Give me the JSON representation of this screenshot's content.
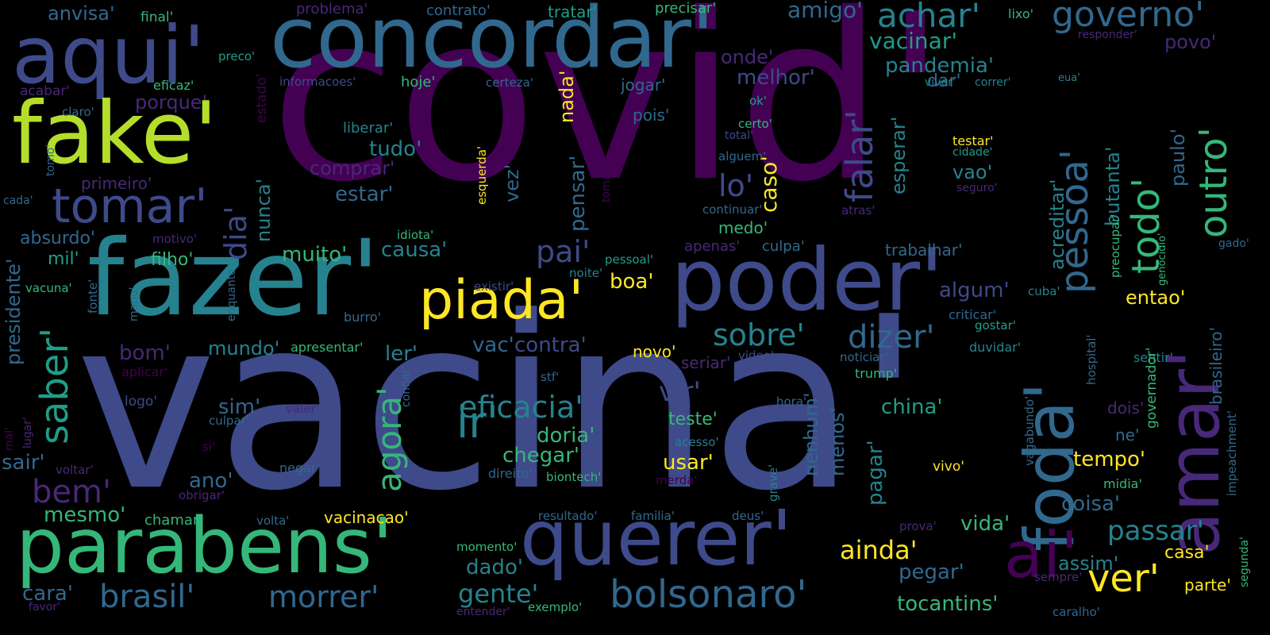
{
  "title": "",
  "palette": {
    "background": "#000000",
    "darkest_purple": "#440154",
    "purple": "#482878",
    "indigo": "#3e4a89",
    "blue": "#31688e",
    "teal_blue": "#26828e",
    "teal": "#1f9e89",
    "green": "#35b779",
    "lime": "#6ece58",
    "yellow_green": "#b5de2b",
    "yellow": "#fde725"
  },
  "words": [
    {
      "text": "covid'",
      "color": "#440154"
    },
    {
      "text": "vacina'",
      "color": "#3e4a89"
    },
    {
      "text": "fazer'",
      "color": "#26828e"
    },
    {
      "text": "concordar'",
      "color": "#31688e"
    },
    {
      "text": "aqui'",
      "color": "#3e4a89"
    },
    {
      "text": "fake'",
      "color": "#b5de2b"
    },
    {
      "text": "poder'",
      "color": "#3e4a89"
    },
    {
      "text": "querer'",
      "color": "#3e4a89"
    },
    {
      "text": "parabens'",
      "color": "#35b779"
    },
    {
      "text": "piada'",
      "color": "#fde725"
    },
    {
      "text": "tomar'",
      "color": "#3e4a89"
    },
    {
      "text": "foda'",
      "color": "#31688e"
    },
    {
      "text": "amar'",
      "color": "#482878"
    },
    {
      "text": "ai'",
      "color": "#440154"
    },
    {
      "text": "ver'",
      "color": "#fde725"
    },
    {
      "text": "bolsonaro'",
      "color": "#31688e"
    },
    {
      "text": "pessoa'",
      "color": "#31688e"
    },
    {
      "text": "todo'",
      "color": "#35b779"
    },
    {
      "text": "outro'",
      "color": "#35b779"
    },
    {
      "text": "governo'",
      "color": "#31688e"
    },
    {
      "text": "achar'",
      "color": "#26828e"
    },
    {
      "text": "falar'",
      "color": "#3e4a89"
    },
    {
      "text": "saber'",
      "color": "#1f9e89"
    },
    {
      "text": "ir'",
      "color": "#26828e"
    },
    {
      "text": "agora'",
      "color": "#35b779"
    },
    {
      "text": "brasil'",
      "color": "#31688e"
    },
    {
      "text": "morrer'",
      "color": "#31688e"
    },
    {
      "text": "dizer'",
      "color": "#31688e"
    },
    {
      "text": "sobre'",
      "color": "#26828e"
    },
    {
      "text": "bem'",
      "color": "#482878"
    },
    {
      "text": "eficacia'",
      "color": "#26828e"
    },
    {
      "text": "vir'",
      "color": "#3e4a89"
    },
    {
      "text": "pai'",
      "color": "#3e4a89"
    },
    {
      "text": "dia'",
      "color": "#3e4a89"
    },
    {
      "text": "gente'",
      "color": "#26828e"
    },
    {
      "text": "passar'",
      "color": "#26828e"
    },
    {
      "text": "ainda'",
      "color": "#fde725"
    },
    {
      "text": "amigo'",
      "color": "#31688e"
    },
    {
      "text": "vacinar'",
      "color": "#1f9e89"
    },
    {
      "text": "pandemia'",
      "color": "#26828e"
    },
    {
      "text": "melhor'",
      "color": "#3e4a89"
    },
    {
      "text": "onde'",
      "color": "#482878"
    },
    {
      "text": "lo'",
      "color": "#3e4a89"
    },
    {
      "text": "caso'",
      "color": "#fde725"
    },
    {
      "text": "tudo'",
      "color": "#26828e"
    },
    {
      "text": "comprar'",
      "color": "#482878"
    },
    {
      "text": "estar'",
      "color": "#31688e"
    },
    {
      "text": "vez'",
      "color": "#31688e"
    },
    {
      "text": "nada'",
      "color": "#fde725"
    },
    {
      "text": "pensar'",
      "color": "#31688e"
    },
    {
      "text": "muito'",
      "color": "#35b779"
    },
    {
      "text": "causa'",
      "color": "#26828e"
    },
    {
      "text": "nunca'",
      "color": "#26828e"
    },
    {
      "text": "esperar'",
      "color": "#26828e"
    },
    {
      "text": "acreditar'",
      "color": "#26828e"
    },
    {
      "text": "butanta'",
      "color": "#26828e"
    },
    {
      "text": "paulo'",
      "color": "#31688e"
    },
    {
      "text": "vao'",
      "color": "#26828e"
    },
    {
      "text": "testar'",
      "color": "#fde725"
    },
    {
      "text": "algum'",
      "color": "#3e4a89"
    },
    {
      "text": "entao'",
      "color": "#fde725"
    },
    {
      "text": "boa'",
      "color": "#fde725"
    },
    {
      "text": "mundo'",
      "color": "#26828e"
    },
    {
      "text": "ler'",
      "color": "#26828e"
    },
    {
      "text": "vac'",
      "color": "#31688e"
    },
    {
      "text": "contra'",
      "color": "#3e4a89"
    },
    {
      "text": "bom'",
      "color": "#482878"
    },
    {
      "text": "china'",
      "color": "#1f9e89"
    },
    {
      "text": "doria'",
      "color": "#35b779"
    },
    {
      "text": "chegar'",
      "color": "#35b779"
    },
    {
      "text": "usar'",
      "color": "#fde725"
    },
    {
      "text": "nenhum'",
      "color": "#31688e"
    },
    {
      "text": "menos'",
      "color": "#31688e"
    },
    {
      "text": "pagar'",
      "color": "#26828e"
    },
    {
      "text": "tempo'",
      "color": "#fde725"
    },
    {
      "text": "coisa'",
      "color": "#31688e"
    },
    {
      "text": "vida'",
      "color": "#35b779"
    },
    {
      "text": "casa'",
      "color": "#fde725"
    },
    {
      "text": "assim'",
      "color": "#26828e"
    },
    {
      "text": "parte'",
      "color": "#fde725"
    },
    {
      "text": "dado'",
      "color": "#26828e"
    },
    {
      "text": "pegar'",
      "color": "#31688e"
    },
    {
      "text": "tocantins'",
      "color": "#35b779"
    },
    {
      "text": "mesmo'",
      "color": "#35b779"
    },
    {
      "text": "ano'",
      "color": "#31688e"
    },
    {
      "text": "cara'",
      "color": "#31688e"
    },
    {
      "text": "sim'",
      "color": "#31688e"
    },
    {
      "text": "sair'",
      "color": "#31688e"
    },
    {
      "text": "presidente'",
      "color": "#31688e"
    },
    {
      "text": "absurdo'",
      "color": "#31688e"
    },
    {
      "text": "mil'",
      "color": "#1f9e89"
    },
    {
      "text": "filho'",
      "color": "#35b779"
    },
    {
      "text": "porque'",
      "color": "#482878"
    },
    {
      "text": "primeiro'",
      "color": "#482878"
    },
    {
      "text": "anvisa'",
      "color": "#31688e"
    },
    {
      "text": "final'",
      "color": "#35b779"
    },
    {
      "text": "problema'",
      "color": "#482878"
    },
    {
      "text": "contrato'",
      "color": "#31688e"
    },
    {
      "text": "tratar'",
      "color": "#1f9e89"
    },
    {
      "text": "precisar'",
      "color": "#35b779"
    },
    {
      "text": "lixo'",
      "color": "#35b779"
    },
    {
      "text": "responder'",
      "color": "#482878"
    },
    {
      "text": "povo'",
      "color": "#482878"
    },
    {
      "text": "preco'",
      "color": "#1f9e89"
    },
    {
      "text": "eficaz'",
      "color": "#35b779"
    },
    {
      "text": "informacoes'",
      "color": "#3e4a89"
    },
    {
      "text": "hoje'",
      "color": "#35b779"
    },
    {
      "text": "certeza'",
      "color": "#31688e"
    },
    {
      "text": "jogar'",
      "color": "#31688e"
    },
    {
      "text": "dar'",
      "color": "#31688e"
    },
    {
      "text": "viver'",
      "color": "#26828e"
    },
    {
      "text": "correr'",
      "color": "#26828e"
    },
    {
      "text": "eua'",
      "color": "#26828e"
    },
    {
      "text": "acabar'",
      "color": "#482878"
    },
    {
      "text": "claro'",
      "color": "#31688e"
    },
    {
      "text": "estado'",
      "color": "#440154"
    },
    {
      "text": "liberar'",
      "color": "#26828e"
    },
    {
      "text": "pois'",
      "color": "#31688e"
    },
    {
      "text": "ok'",
      "color": "#1f9e89"
    },
    {
      "text": "certo'",
      "color": "#35b779"
    },
    {
      "text": "total'",
      "color": "#3e4a89"
    },
    {
      "text": "alguem'",
      "color": "#31688e"
    },
    {
      "text": "cidade'",
      "color": "#1f9e89"
    },
    {
      "text": "seguro'",
      "color": "#482878"
    },
    {
      "text": "esquerda'",
      "color": "#fde725"
    },
    {
      "text": "toma'",
      "color": "#440154"
    },
    {
      "text": "tomo'",
      "color": "#31688e"
    },
    {
      "text": "cada'",
      "color": "#31688e"
    },
    {
      "text": "continuar'",
      "color": "#31688e"
    },
    {
      "text": "atras'",
      "color": "#482878"
    },
    {
      "text": "medo'",
      "color": "#35b779"
    },
    {
      "text": "idiota'",
      "color": "#35b779"
    },
    {
      "text": "motivo'",
      "color": "#482878"
    },
    {
      "text": "pessoal'",
      "color": "#1f9e89"
    },
    {
      "text": "apenas'",
      "color": "#482878"
    },
    {
      "text": "culpa'",
      "color": "#31688e"
    },
    {
      "text": "trabalhar'",
      "color": "#31688e"
    },
    {
      "text": "gado'",
      "color": "#31688e"
    },
    {
      "text": "preocupar'",
      "color": "#35b779"
    },
    {
      "text": "genocídio'",
      "color": "#35b779"
    },
    {
      "text": "brasileiro'",
      "color": "#31688e"
    },
    {
      "text": "noite'",
      "color": "#26828e"
    },
    {
      "text": "existir'",
      "color": "#3e4a89"
    },
    {
      "text": "vacuna'",
      "color": "#35b779"
    },
    {
      "text": "enquanto'",
      "color": "#31688e"
    },
    {
      "text": "mano'",
      "color": "#31688e"
    },
    {
      "text": "fonte'",
      "color": "#31688e"
    },
    {
      "text": "burro'",
      "color": "#31688e"
    },
    {
      "text": "criticar'",
      "color": "#31688e"
    },
    {
      "text": "gostar'",
      "color": "#1f9e89"
    },
    {
      "text": "cuba'",
      "color": "#26828e"
    },
    {
      "text": "hospital'",
      "color": "#31688e"
    },
    {
      "text": "duvidar'",
      "color": "#26828e"
    },
    {
      "text": "sentir'",
      "color": "#26828e"
    },
    {
      "text": "governador'",
      "color": "#35b779"
    },
    {
      "text": "apresentar'",
      "color": "#35b779"
    },
    {
      "text": "novo'",
      "color": "#fde725"
    },
    {
      "text": "seriar'",
      "color": "#482878"
    },
    {
      "text": "video'",
      "color": "#3e4a89"
    },
    {
      "text": "noticiar'",
      "color": "#31688e"
    },
    {
      "text": "trump'",
      "color": "#35b779"
    },
    {
      "text": "aplicar'",
      "color": "#440154"
    },
    {
      "text": "logo'",
      "color": "#3e4a89"
    },
    {
      "text": "confiar'",
      "color": "#31688e"
    },
    {
      "text": "stf'",
      "color": "#31688e"
    },
    {
      "text": "hora'",
      "color": "#31688e"
    },
    {
      "text": "valer'",
      "color": "#482878"
    },
    {
      "text": "culpar'",
      "color": "#31688e"
    },
    {
      "text": "teste'",
      "color": "#35b779"
    },
    {
      "text": "acesso'",
      "color": "#26828e"
    },
    {
      "text": "lugar'",
      "color": "#482878"
    },
    {
      "text": "mal'",
      "color": "#440154"
    },
    {
      "text": "si'",
      "color": "#440154"
    },
    {
      "text": "voltar'",
      "color": "#482878"
    },
    {
      "text": "negar'",
      "color": "#31688e"
    },
    {
      "text": "direito'",
      "color": "#31688e"
    },
    {
      "text": "biontech'",
      "color": "#35b779"
    },
    {
      "text": "merda'",
      "color": "#440154"
    },
    {
      "text": "grave'",
      "color": "#26828e"
    },
    {
      "text": "vivo'",
      "color": "#fde725"
    },
    {
      "text": "vagabundo'",
      "color": "#31688e"
    },
    {
      "text": "impeachment'",
      "color": "#31688e"
    },
    {
      "text": "dois'",
      "color": "#482878"
    },
    {
      "text": "ne'",
      "color": "#31688e"
    },
    {
      "text": "midia'",
      "color": "#35b779"
    },
    {
      "text": "obrigar'",
      "color": "#482878"
    },
    {
      "text": "chamar'",
      "color": "#35b779"
    },
    {
      "text": "volta'",
      "color": "#31688e"
    },
    {
      "text": "vacinacao'",
      "color": "#fde725"
    },
    {
      "text": "resultado'",
      "color": "#31688e"
    },
    {
      "text": "familia'",
      "color": "#31688e"
    },
    {
      "text": "deus'",
      "color": "#31688e"
    },
    {
      "text": "prova'",
      "color": "#482878"
    },
    {
      "text": "momento'",
      "color": "#35b779"
    },
    {
      "text": "segunda'",
      "color": "#35b779"
    },
    {
      "text": "sempre'",
      "color": "#482878"
    },
    {
      "text": "favor'",
      "color": "#482878"
    },
    {
      "text": "entender'",
      "color": "#482878"
    },
    {
      "text": "exemplo'",
      "color": "#35b779"
    },
    {
      "text": "caralho'",
      "color": "#31688e"
    }
  ]
}
